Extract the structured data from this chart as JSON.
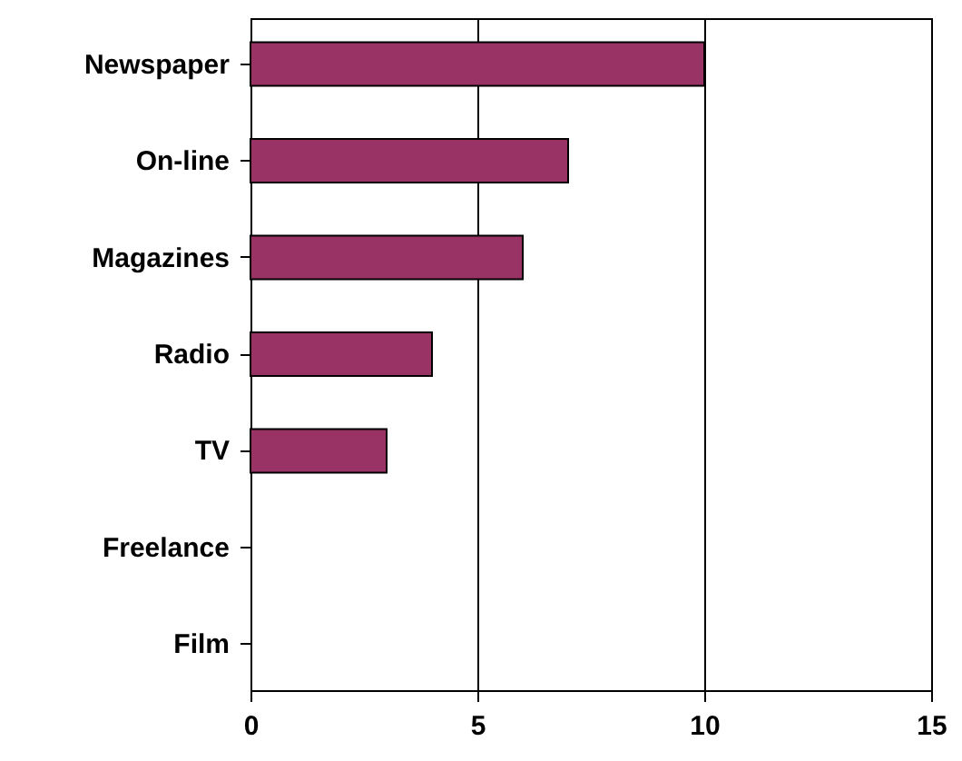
{
  "chart_data": {
    "type": "bar",
    "orientation": "horizontal",
    "categories": [
      "Newspaper",
      "On-line",
      "Magazines",
      "Radio",
      "TV",
      "Freelance",
      "Film"
    ],
    "values": [
      10,
      7,
      6,
      4,
      3,
      0,
      0
    ],
    "color": "#993366",
    "xlim": [
      0,
      15
    ],
    "xticks": [
      0,
      5,
      10,
      15
    ],
    "grid": "x"
  }
}
